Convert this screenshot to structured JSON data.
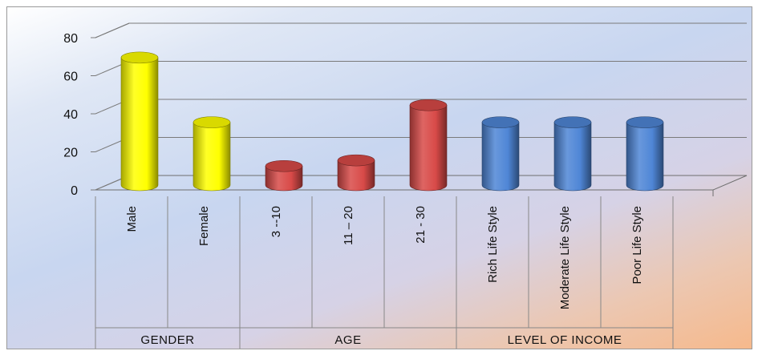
{
  "chart_data": {
    "type": "bar",
    "categories": [
      "Male",
      "Female",
      "3 --10",
      "11 – 20",
      "21 - 30",
      "Rich Life Style",
      "Moderate Life Style",
      "Poor Life Style"
    ],
    "values": [
      67,
      33,
      10,
      13,
      42,
      33,
      33,
      33
    ],
    "groups": [
      {
        "label": "GENDER",
        "categories": [
          "Male",
          "Female"
        ],
        "color": "#ffff00"
      },
      {
        "label": "AGE",
        "categories": [
          "3 --10",
          "11 – 20",
          "21 - 30"
        ],
        "color": "#d84a48"
      },
      {
        "label": "LEVEL OF INCOME",
        "categories": [
          "Rich Life Style",
          "Moderate Life Style",
          "Poor Life Style"
        ],
        "color": "#4f86d6"
      }
    ],
    "yticks": [
      0,
      20,
      40,
      60,
      80
    ],
    "ylim": [
      0,
      80
    ],
    "grid": true,
    "legend": "none",
    "style": "3d-cylinder"
  }
}
